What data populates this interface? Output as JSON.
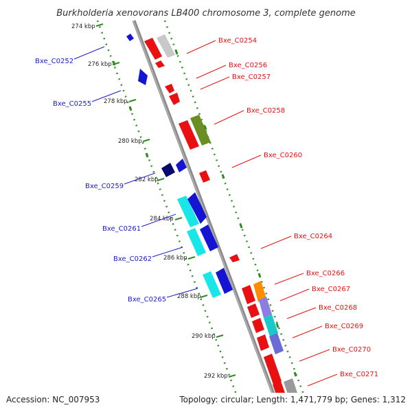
{
  "title": "Burkholderia xenovorans LB400 chromosome 3, complete genome",
  "footer": {
    "accession": "Accession: NC_007953",
    "summary": "Topology: circular; Length: 1,471,779 bp; Genes: 1,312"
  },
  "colors": {
    "forward_label": "#e81010",
    "reverse_label": "#1a1acc",
    "backbone": "#8a8a8a",
    "tick": "#2e8b22"
  },
  "ticks": [
    "274 kbp",
    "276 kbp",
    "278 kbp",
    "280 kbp",
    "282 kbp",
    "284 kbp",
    "286 kbp",
    "288 kbp",
    "290 kbp",
    "292 kbp"
  ],
  "reverse_genes": [
    "Bxe_C0252",
    "Bxe_C0255",
    "Bxe_C0259",
    "Bxe_C0261",
    "Bxe_C0262",
    "Bxe_C0265"
  ],
  "forward_genes": [
    "Bxe_C0254",
    "Bxe_C0256",
    "Bxe_C0257",
    "Bxe_C0258",
    "Bxe_C0260",
    "Bxe_C0264",
    "Bxe_C0266",
    "Bxe_C0267",
    "Bxe_C0268",
    "Bxe_C0269",
    "Bxe_C0270",
    "Bxe_C0271"
  ]
}
